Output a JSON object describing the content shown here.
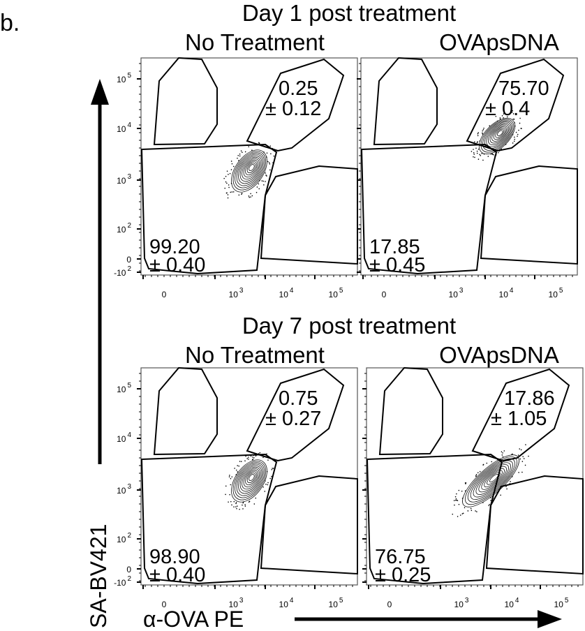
{
  "figure_label": "b.",
  "chart_data": {
    "type": "scatter",
    "subtype": "flow-cytometry-contour",
    "xlabel": "α-OVA PE",
    "ylabel": "SA-BV421",
    "x_scale": "biexponential",
    "y_scale": "biexponential",
    "x_ticks": [
      {
        "base": "0",
        "exp": ""
      },
      {
        "base": "10",
        "exp": "3"
      },
      {
        "base": "10",
        "exp": "4"
      },
      {
        "base": "10",
        "exp": "5"
      }
    ],
    "y_ticks": [
      {
        "base": "-10",
        "exp": "2"
      },
      {
        "base": "0",
        "exp": ""
      },
      {
        "base": "10",
        "exp": "2"
      },
      {
        "base": "10",
        "exp": "3"
      },
      {
        "base": "10",
        "exp": "4"
      },
      {
        "base": "10",
        "exp": "5"
      }
    ],
    "groups": [
      {
        "title": "Day 1 post treatment",
        "panels": [
          {
            "condition": "No Treatment",
            "upper_right_gate": {
              "value": "0.25",
              "sd": "± 0.12"
            },
            "lower_left_gate": {
              "value": "99.20",
              "sd": "± 0.40"
            },
            "population": "lower-left"
          },
          {
            "condition": "OVApsDNA",
            "upper_right_gate": {
              "value": "75.70",
              "sd": "± 0.4"
            },
            "lower_left_gate": {
              "value": "17.85",
              "sd": "± 0.45"
            },
            "population": "upper-right"
          }
        ]
      },
      {
        "title": "Day 7 post treatment",
        "panels": [
          {
            "condition": "No Treatment",
            "upper_right_gate": {
              "value": "0.75",
              "sd": "± 0.27"
            },
            "lower_left_gate": {
              "value": "98.90",
              "sd": "± 0.40"
            },
            "population": "lower-left"
          },
          {
            "condition": "OVApsDNA",
            "upper_right_gate": {
              "value": "17.86",
              "sd": "± 1.05"
            },
            "lower_left_gate": {
              "value": "76.75",
              "sd": "± 0.25"
            },
            "population": "split"
          }
        ]
      }
    ]
  }
}
